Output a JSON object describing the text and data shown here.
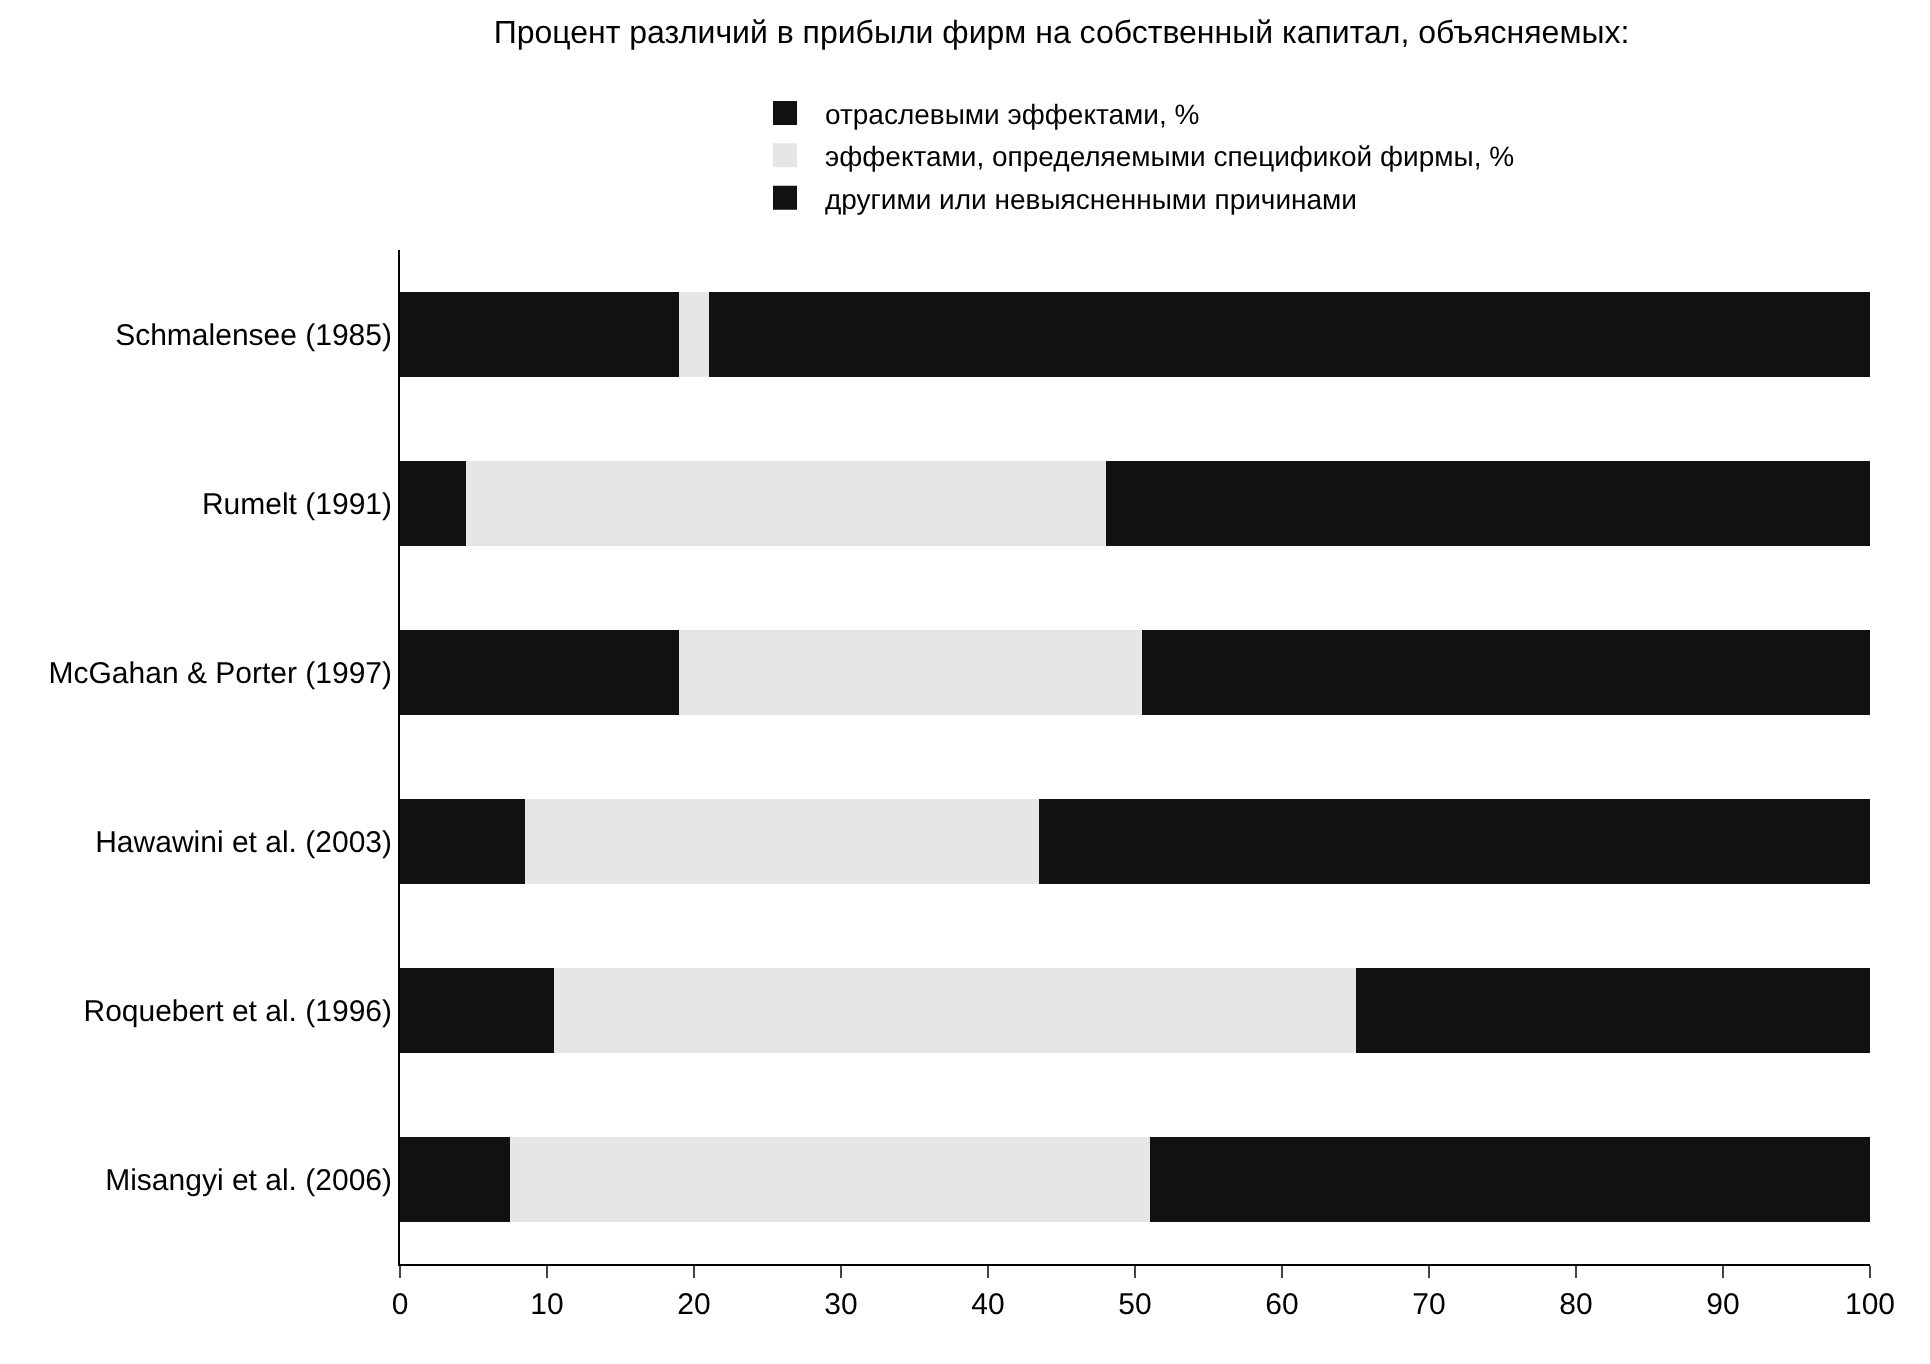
{
  "chart_data": {
    "type": "bar",
    "orientation": "horizontal",
    "stacked": true,
    "title": "Процент различий в прибыли фирм на собственный капитал, объясняемых:",
    "categories": [
      "Schmalensee (1985)",
      "Rumelt (1991)",
      "McGahan & Porter (1997)",
      "Hawawini et al. (2003)",
      "Roquebert et al. (1996)",
      "Misangyi et al. (2006)"
    ],
    "series": [
      {
        "name": "отраслевыми эффектами, %",
        "color": "#111111",
        "values": [
          19,
          4.5,
          19,
          8.5,
          10.5,
          7.5
        ]
      },
      {
        "name": "эффектами, определяемыми спецификой фирмы, %",
        "color": "#e6e6e6",
        "values": [
          2,
          43.5,
          31.5,
          35,
          54.5,
          43.5
        ]
      },
      {
        "name": "другими или невыясненными причинами",
        "color": "#111111",
        "values": [
          79,
          52,
          49.5,
          56.5,
          35,
          49
        ]
      }
    ],
    "xlim": [
      0,
      100
    ],
    "xticks": [
      0,
      10,
      20,
      30,
      40,
      50,
      60,
      70,
      80,
      90,
      100
    ],
    "grid": false,
    "legend": "top"
  }
}
